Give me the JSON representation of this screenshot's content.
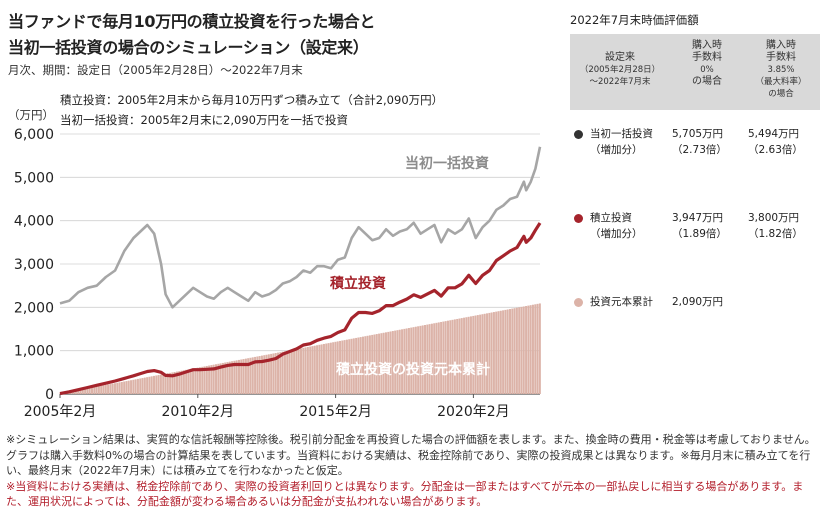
{
  "title": {
    "line1": "当ファンドで毎月10万円の積立投資を行った場合と",
    "line2": "当初一括投資の場合のシミュレーション（設定来）"
  },
  "subtitle": "月次、期間：設定日（2005年2月28日）〜2022年7月末",
  "legend": {
    "tsumitate": "積立投資：2005年2月末から毎月10万円ずつ積み立て（合計2,090万円）",
    "ikkatsu": "当初一括投資：2005年2月末に2,090万円を一括で投資"
  },
  "colors": {
    "ikkatsu": "#a6a6a6",
    "tsumitate": "#a5242c",
    "principal": "#dcb3a8",
    "panel_bg": "#d9d9d9",
    "note_red": "#b21d2a"
  },
  "chart_data": {
    "type": "line",
    "unit_label": "（万円）",
    "ylim": [
      0,
      6000
    ],
    "yticks": [
      "0",
      "1,000",
      "2,000",
      "3,000",
      "4,000",
      "5,000",
      "6,000"
    ],
    "xticks": [
      {
        "label": "2005年2月",
        "x": "2005-02"
      },
      {
        "label": "2010年2月",
        "x": "2010-02"
      },
      {
        "label": "2015年2月",
        "x": "2015-02"
      },
      {
        "label": "2020年2月",
        "x": "2020-02"
      }
    ],
    "x_range": [
      "2005-02",
      "2022-07"
    ],
    "annotations": {
      "ikkatsu": "当初一括投資",
      "tsumitate": "積立投資",
      "principal": "積立投資の投資元本累計"
    },
    "series": [
      {
        "key": "ikkatsu",
        "x": [
          "2005-02",
          "2005-06",
          "2005-10",
          "2006-02",
          "2006-06",
          "2006-10",
          "2007-02",
          "2007-06",
          "2007-10",
          "2008-01",
          "2008-04",
          "2008-07",
          "2008-10",
          "2008-12",
          "2009-03",
          "2009-06",
          "2009-09",
          "2009-12",
          "2010-03",
          "2010-06",
          "2010-09",
          "2010-12",
          "2011-03",
          "2011-06",
          "2011-09",
          "2011-12",
          "2012-03",
          "2012-06",
          "2012-09",
          "2012-12",
          "2013-03",
          "2013-06",
          "2013-09",
          "2013-12",
          "2014-03",
          "2014-06",
          "2014-09",
          "2014-12",
          "2015-03",
          "2015-06",
          "2015-09",
          "2015-12",
          "2016-03",
          "2016-06",
          "2016-09",
          "2016-12",
          "2017-03",
          "2017-06",
          "2017-09",
          "2017-12",
          "2018-03",
          "2018-06",
          "2018-09",
          "2018-12",
          "2019-03",
          "2019-06",
          "2019-09",
          "2019-12",
          "2020-03",
          "2020-06",
          "2020-09",
          "2020-12",
          "2021-03",
          "2021-06",
          "2021-09",
          "2021-12",
          "2022-01",
          "2022-03",
          "2022-05",
          "2022-07"
        ],
        "values": [
          2090,
          2150,
          2350,
          2450,
          2500,
          2700,
          2850,
          3300,
          3600,
          3750,
          3900,
          3700,
          3000,
          2300,
          2000,
          2150,
          2300,
          2450,
          2350,
          2250,
          2200,
          2350,
          2450,
          2350,
          2250,
          2150,
          2350,
          2250,
          2300,
          2400,
          2550,
          2600,
          2700,
          2850,
          2800,
          2950,
          2950,
          2900,
          3100,
          3150,
          3600,
          3850,
          3700,
          3550,
          3600,
          3800,
          3650,
          3750,
          3800,
          3950,
          3700,
          3800,
          3900,
          3500,
          3800,
          3700,
          3800,
          4050,
          3600,
          3850,
          4000,
          4250,
          4350,
          4500,
          4550,
          4900,
          4700,
          4900,
          5200,
          5705
        ]
      },
      {
        "key": "tsumitate",
        "x": [
          "2005-02",
          "2005-06",
          "2005-10",
          "2006-02",
          "2006-06",
          "2006-10",
          "2007-02",
          "2007-06",
          "2007-10",
          "2008-01",
          "2008-04",
          "2008-07",
          "2008-10",
          "2008-12",
          "2009-03",
          "2009-06",
          "2009-09",
          "2009-12",
          "2010-03",
          "2010-06",
          "2010-09",
          "2010-12",
          "2011-03",
          "2011-06",
          "2011-09",
          "2011-12",
          "2012-03",
          "2012-06",
          "2012-09",
          "2012-12",
          "2013-03",
          "2013-06",
          "2013-09",
          "2013-12",
          "2014-03",
          "2014-06",
          "2014-09",
          "2014-12",
          "2015-03",
          "2015-06",
          "2015-09",
          "2015-12",
          "2016-03",
          "2016-06",
          "2016-09",
          "2016-12",
          "2017-03",
          "2017-06",
          "2017-09",
          "2017-12",
          "2018-03",
          "2018-06",
          "2018-09",
          "2018-12",
          "2019-03",
          "2019-06",
          "2019-09",
          "2019-12",
          "2020-03",
          "2020-06",
          "2020-09",
          "2020-12",
          "2021-03",
          "2021-06",
          "2021-09",
          "2021-12",
          "2022-01",
          "2022-03",
          "2022-05",
          "2022-07"
        ],
        "values": [
          10,
          50,
          100,
          150,
          200,
          250,
          300,
          360,
          420,
          470,
          520,
          540,
          500,
          430,
          420,
          460,
          510,
          560,
          560,
          570,
          580,
          620,
          660,
          680,
          680,
          680,
          740,
          750,
          780,
          820,
          920,
          980,
          1040,
          1130,
          1160,
          1240,
          1290,
          1330,
          1420,
          1480,
          1750,
          1880,
          1880,
          1860,
          1920,
          2040,
          2040,
          2120,
          2190,
          2290,
          2230,
          2310,
          2390,
          2260,
          2450,
          2450,
          2540,
          2740,
          2550,
          2740,
          2850,
          3080,
          3190,
          3300,
          3380,
          3640,
          3500,
          3600,
          3780,
          3947
        ]
      },
      {
        "key": "principal",
        "x": [
          "2005-02",
          "2022-07"
        ],
        "values": [
          10,
          2090
        ]
      }
    ]
  },
  "panel": {
    "header": "2022年7月末時価評価額",
    "col0": {
      "l1": "設定来",
      "l2": "（2005年2月28日）",
      "l3": "〜2022年7月末"
    },
    "col1": {
      "l1": "購入時",
      "l2": "手数料",
      "l3": "0%",
      "l4": "の場合"
    },
    "col2": {
      "l1": "購入時",
      "l2": "手数料",
      "l3": "3.85%",
      "l4": "（最大料率）",
      "l5": "の場合"
    },
    "rows": [
      {
        "label": "当初一括投資",
        "sub": "（増加分）",
        "v1": "5,705万円",
        "v1sub": "（2.73倍）",
        "v2": "5,494万円",
        "v2sub": "（2.63倍）"
      },
      {
        "label": "積立投資",
        "sub": "（増加分）",
        "v1": "3,947万円",
        "v1sub": "（1.89倍）",
        "v2": "3,800万円",
        "v2sub": "（1.82倍）"
      },
      {
        "label": "投資元本累計",
        "v1": "2,090万円"
      }
    ]
  },
  "notes": {
    "n1": "※シミュレーション結果は、実質的な信託報酬等控除後。税引前分配金を再投資した場合の評価額を表します。また、換金時の費用・税金等は考慮しておりません。　グラフは購入手数料0%の場合の計算結果を表しています。当資料における実績は、税金控除前であり、実際の投資成果とは異なります。※毎月月末に積み立てを行い、最終月末（2022年7月末）には積み立てを行わなかったと仮定。",
    "n2": "※当資料における実績は、税金控除前であり、実際の投資者利回りとは異なります。分配金は一部またはすべてが元本の一部払戻しに相当する場合があります。また、運用状況によっては、分配金額が変わる場合あるいは分配金が支払われない場合があります。"
  }
}
